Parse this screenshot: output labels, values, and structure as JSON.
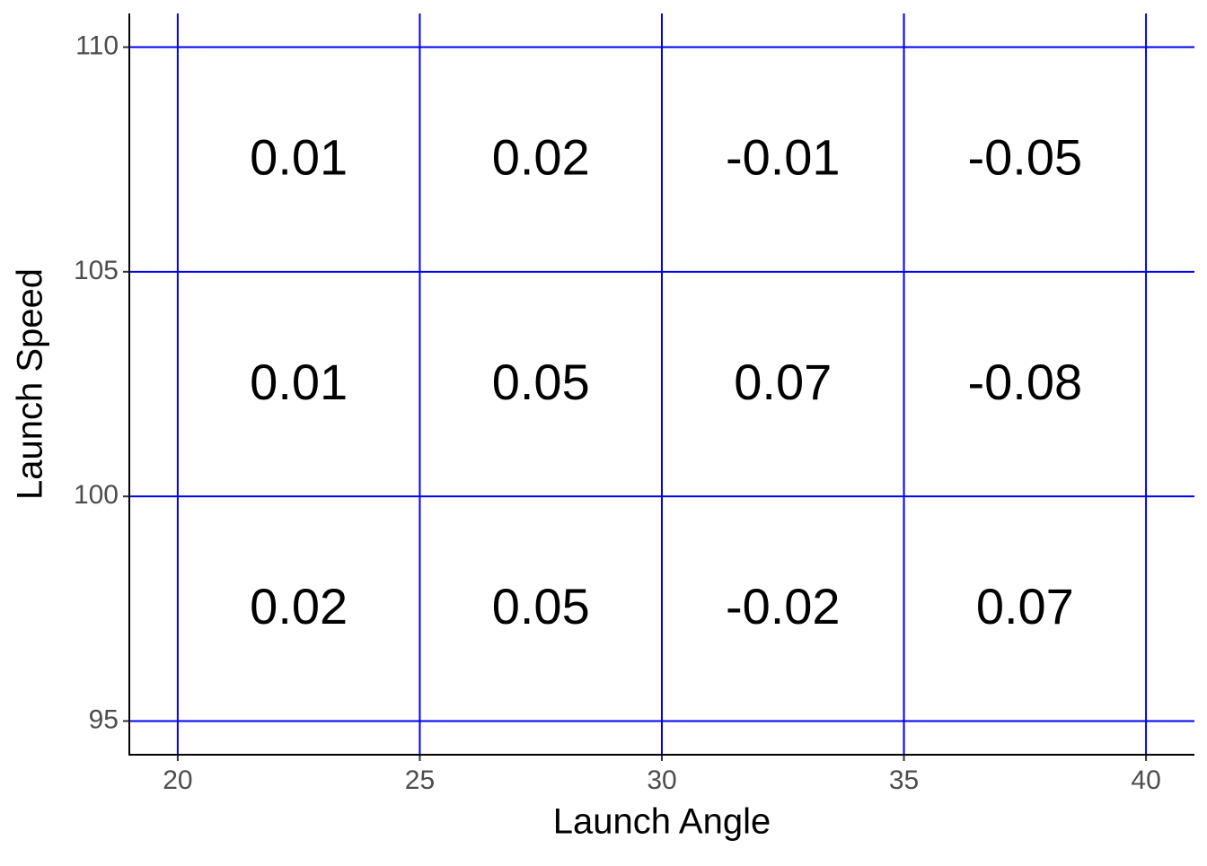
{
  "chart_data": {
    "type": "text-grid",
    "x_label": "Launch Angle",
    "y_label": "Launch Speed",
    "x": [
      22.5,
      27.5,
      32.5,
      37.5,
      22.5,
      27.5,
      32.5,
      37.5,
      22.5,
      27.5,
      32.5,
      37.5
    ],
    "y": [
      107.5,
      107.5,
      107.5,
      107.5,
      102.5,
      102.5,
      102.5,
      102.5,
      97.5,
      97.5,
      97.5,
      97.5
    ],
    "values": [
      0.01,
      0.02,
      -0.01,
      -0.05,
      0.01,
      0.05,
      0.07,
      -0.08,
      0.02,
      0.05,
      -0.02,
      0.07
    ],
    "xlim": [
      19,
      41
    ],
    "xticks": [
      20,
      25,
      30,
      35,
      40
    ],
    "ylim": [
      94.25,
      110.75
    ],
    "yticks": [
      95,
      100,
      105,
      110
    ],
    "grid": true,
    "grid_color": "#0000ee",
    "text_color": "#000000"
  }
}
